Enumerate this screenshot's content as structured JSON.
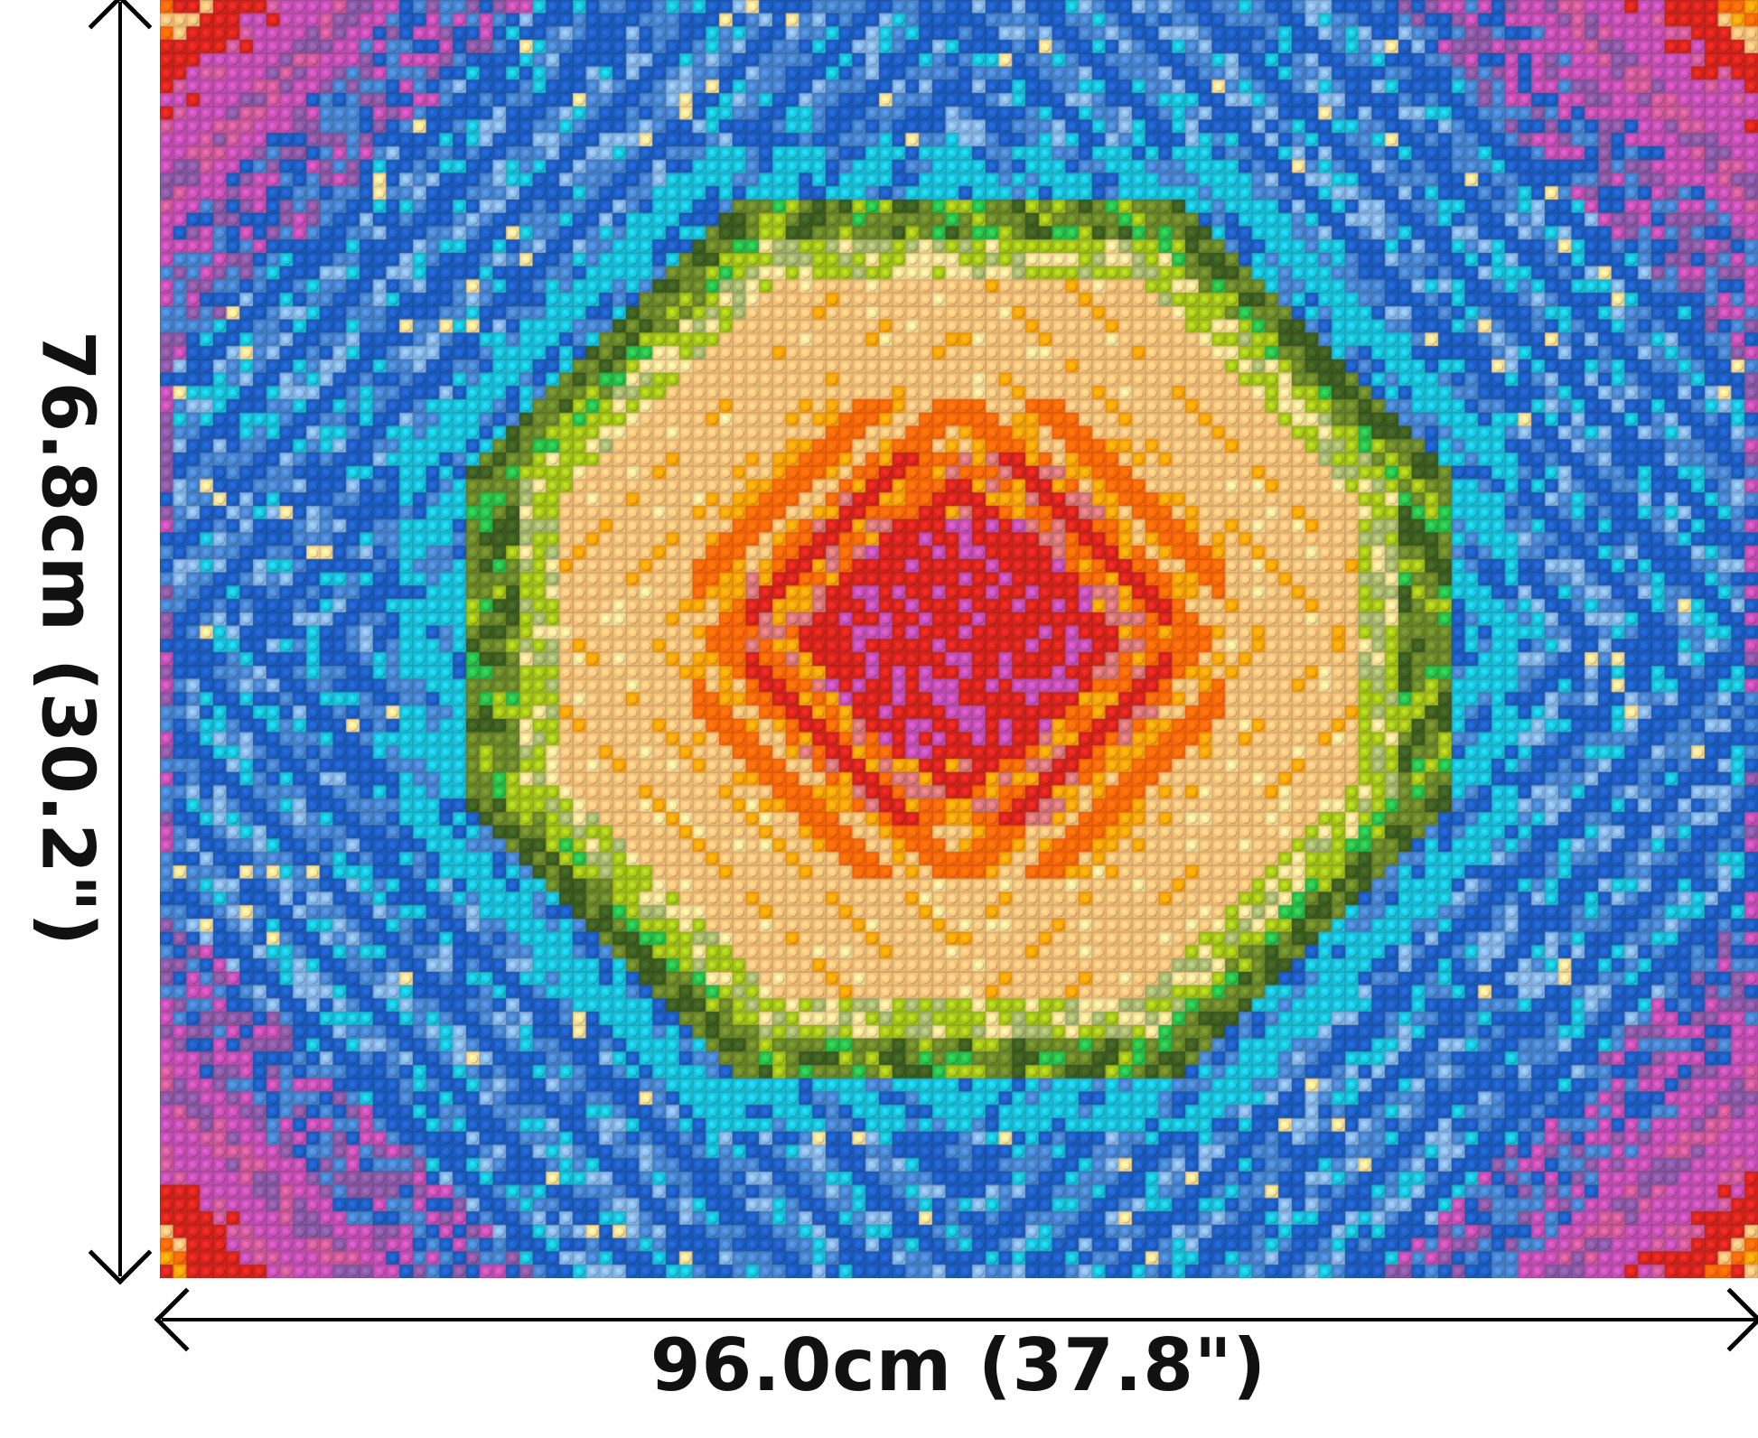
{
  "dimensions": {
    "width_label": "96.0cm (37.8\")",
    "height_label": "76.8cm (30.2\")"
  },
  "mosaic": {
    "studs_wide": 120,
    "studs_high": 96,
    "palette": {
      "red": "#d8261e",
      "dark_red": "#b8484a",
      "pink": "#d8787a",
      "orange": "#fd6a0a",
      "light_orange": "#fba40c",
      "tan": "#f5c27c",
      "light_yellow": "#f8e09a",
      "lime": "#a7c51c",
      "olive": "#6e8a2c",
      "dark_green": "#3f5f22",
      "green": "#2cbf4c",
      "sage": "#a8b870",
      "cyan": "#1cc3dc",
      "blue": "#1f5fc3",
      "medium_blue": "#4a86d0",
      "light_blue": "#8ab8e8",
      "purple": "#8c5aa6",
      "magenta": "#c652b6",
      "pink_magenta": "#d05c9c"
    }
  }
}
